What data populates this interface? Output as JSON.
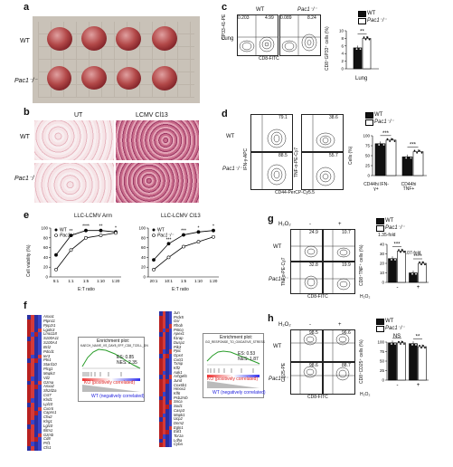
{
  "panels": {
    "a": {
      "label": "a",
      "rows": [
        "WT",
        "Pac1⁻/⁻"
      ]
    },
    "b": {
      "label": "b",
      "cols": [
        "UT",
        "LCMV Cl13"
      ],
      "rows": [
        "WT",
        "Pac1⁻/⁻"
      ]
    },
    "c": {
      "label": "c",
      "col_wt": "WT",
      "col_ko": "Pac1⁻/⁻",
      "row": "Lung",
      "ylabel": "GP33-41-PE",
      "xlabel": "CD8-FITC",
      "wt_q": [
        "0.203",
        "4.99"
      ],
      "ko_q": [
        "0.089",
        "8.24"
      ],
      "bar_ylabel": "CD8⁺GP33⁺ cells (%)",
      "bar_x": "Lung",
      "sig": "**",
      "ticks": [
        "0",
        "2",
        "4",
        "6",
        "8",
        "10"
      ]
    },
    "d": {
      "label": "d",
      "row_wt": "WT",
      "row_ko": "Pac1⁻/⁻",
      "ylabel1": "IFN-γ-APC",
      "ylabel2": "TNF-α-PE-Cy7",
      "xlabel": "CD44-PerCP-Cy5.5",
      "wt_vals": [
        "79.1",
        "38.6"
      ],
      "ko_vals": [
        "88.5",
        "55.7"
      ],
      "bar_ylabel": "Cells (%)",
      "cats": [
        "CD44hi IFN-γ+",
        "CD44hi TNF+"
      ],
      "sigs": [
        "***",
        "***"
      ],
      "ticks": [
        "0",
        "25",
        "50",
        "75",
        "100"
      ]
    },
    "e": {
      "label": "e",
      "title1": "LLC-LCMV Arm",
      "title2": "LLC-LCMV Cl13",
      "ylabel": "Cell viability (%)",
      "xlabel": "E:T ratio",
      "sigs1": [
        "**",
        "****",
        "**",
        "*"
      ],
      "sigs2": [
        "***",
        "***",
        "*",
        "*"
      ]
    },
    "f": {
      "label": "f",
      "genes_left": [
        "Anxa1",
        "Ptpn11",
        "Ppp2r1",
        "Lgals3",
        "Lmo118",
        "S100A11",
        "S100A4",
        "Bcl2",
        "Pdcd1",
        "Ier3",
        "Ptn1",
        "Stard10",
        "Plcg1",
        "Mapk3",
        "Vil2",
        "Gzma",
        "Anxa2",
        "Sh2d2a",
        "Cst7",
        "Klrd1",
        "Lpl10",
        "Cxcr6",
        "Capns1",
        "Cfw2",
        "Klrg1",
        "Lgl10",
        "Ifitm1",
        "Gzmb",
        "Cd8",
        "Prf1",
        "Cfs1"
      ],
      "gsea1_title": "Enrichment plot:",
      "gsea1_sub": "KAECH_NAIVE_VS_DAY8_EFF_CD8_TCELL_DN",
      "gsea1_es": "ES: 0.85",
      "gsea1_nes": "NES: 2.35",
      "ko_label": "KO (positively correlated)",
      "wt_label": "WT (negatively correlated)",
      "genes_right": [
        "Jun",
        "Prdx5",
        "Gsr",
        "Rhob",
        "Prkcq",
        "Apex1",
        "Il1rap",
        "Dusp1",
        "Pik3",
        "Ppic",
        "Gpx4",
        "Cxcl1",
        "Txnip",
        "Klf2",
        "Aak1",
        "Arhgef6",
        "Jund",
        "Cox6b1",
        "Hmox1",
        "Klf6",
        "Psb2nrb",
        "Snca",
        "Sod1",
        "Casp3",
        "Mapk1",
        "Ucp2",
        "Dnm2",
        "Egln1",
        "Eaf1",
        "Tor1a",
        "Ldha",
        "Cyba"
      ],
      "gsea2_title": "Enrichment plot:",
      "gsea2_sub": "GO_RESPONSE_TO_OXIDATIVE_STRESS",
      "gsea2_es": "ES: 0.53",
      "gsea2_nes": "NES: 1.87"
    },
    "g": {
      "label": "g",
      "h2o2": "H₂O₂",
      "minus": "-",
      "plus": "+",
      "row_wt": "WT",
      "row_ko": "Pac1⁻/⁻",
      "ylabel": "TNFα-PE-Cy7",
      "xlabel": "CD8-FITC",
      "vals": [
        "24.9",
        "10.7",
        "32.8",
        "19.9"
      ],
      "fold1": "1.35-fold",
      "fold2": "2.07-fold",
      "sigs": [
        "***",
        "****"
      ],
      "bar_ylabel": "CD8⁺TNF⁺ cells (%)",
      "ticks": [
        "0",
        "10",
        "20",
        "30",
        "40"
      ]
    },
    "h": {
      "label": "h",
      "h2o2": "H₂O₂",
      "minus": "-",
      "plus": "+",
      "row_wt": "WT",
      "row_ko": "Pac1⁻/⁻",
      "ylabel": "CD25-PE",
      "xlabel": "CD8-FITC",
      "vals": [
        "98.5",
        "96.6",
        "98.6",
        "88.7"
      ],
      "sigs": [
        "NS",
        "**"
      ],
      "bar_ylabel": "CD8⁺CD25⁺ cells (%)",
      "ticks": [
        "0",
        "25",
        "50",
        "75",
        "100"
      ]
    }
  },
  "legend": {
    "wt": "WT",
    "ko": "Pac1⁻/⁻"
  },
  "chart_data": [
    {
      "type": "bar",
      "panel": "c",
      "categories": [
        "Lung"
      ],
      "series": [
        {
          "name": "WT",
          "values": [
            5.5
          ]
        },
        {
          "name": "Pac1⁻/⁻",
          "values": [
            8.0
          ]
        }
      ],
      "ylabel": "CD8⁺GP33⁺ cells (%)",
      "ylim": [
        0,
        10
      ]
    },
    {
      "type": "bar",
      "panel": "d",
      "categories": [
        "CD44hi IFN-γ+",
        "CD44hi TNF+"
      ],
      "series": [
        {
          "name": "WT",
          "values": [
            80,
            47
          ]
        },
        {
          "name": "Pac1⁻/⁻",
          "values": [
            89,
            60
          ]
        }
      ],
      "ylabel": "Cells (%)",
      "ylim": [
        0,
        100
      ]
    },
    {
      "type": "line",
      "panel": "e1",
      "title": "LLC-LCMV Arm",
      "x": [
        "5:1",
        "1:1",
        "1:5",
        "1:10",
        "1:20"
      ],
      "series": [
        {
          "name": "WT",
          "values": [
            45,
            85,
            95,
            95,
            92
          ]
        },
        {
          "name": "Pac1⁻/⁻",
          "values": [
            15,
            55,
            80,
            85,
            90
          ]
        }
      ],
      "ylabel": "Cell viability (%)",
      "xlabel": "E:T ratio",
      "ylim": [
        0,
        100
      ]
    },
    {
      "type": "line",
      "panel": "e2",
      "title": "LLC-LCMV Cl13",
      "x": [
        "20:1",
        "10:1",
        "1:5",
        "1:10",
        "1:20"
      ],
      "series": [
        {
          "name": "WT",
          "values": [
            35,
            68,
            86,
            92,
            95
          ]
        },
        {
          "name": "Pac1⁻/⁻",
          "values": [
            15,
            40,
            62,
            72,
            82
          ]
        }
      ],
      "ylabel": "Cell viability (%)",
      "xlabel": "E:T ratio",
      "ylim": [
        0,
        100
      ]
    },
    {
      "type": "bar",
      "panel": "g",
      "categories": [
        "-",
        "+"
      ],
      "series": [
        {
          "name": "WT",
          "values": [
            25,
            10
          ]
        },
        {
          "name": "Pac1⁻/⁻",
          "values": [
            33,
            20
          ]
        }
      ],
      "ylabel": "CD8⁺TNF⁺ cells (%)",
      "ylim": [
        0,
        40
      ]
    },
    {
      "type": "bar",
      "panel": "h",
      "categories": [
        "-",
        "+"
      ],
      "series": [
        {
          "name": "WT",
          "values": [
            98,
            96
          ]
        },
        {
          "name": "Pac1⁻/⁻",
          "values": [
            98,
            88
          ]
        }
      ],
      "ylabel": "CD8⁺CD25⁺ cells (%)",
      "ylim": [
        0,
        100
      ]
    }
  ]
}
